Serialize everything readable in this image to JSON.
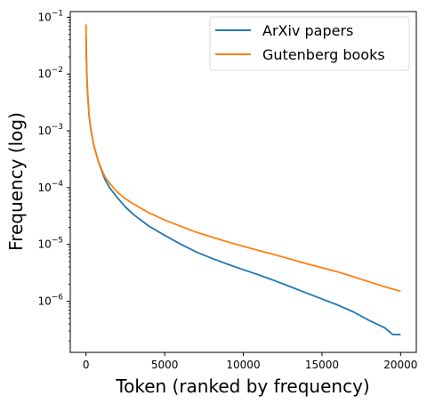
{
  "chart_data": {
    "type": "line",
    "xlabel": "Token (ranked by frequency)",
    "ylabel": "Frequency (log)",
    "xlim": [
      -1000,
      21000
    ],
    "ylim_log10": [
      -6.9,
      -0.9
    ],
    "x_ticks": [
      {
        "value": 0,
        "label": "0"
      },
      {
        "value": 5000,
        "label": "5000"
      },
      {
        "value": 10000,
        "label": "10000"
      },
      {
        "value": 15000,
        "label": "15000"
      },
      {
        "value": 20000,
        "label": "20000"
      }
    ],
    "y_ticks": [
      {
        "value": 0.1,
        "base": "10",
        "exp": "−1"
      },
      {
        "value": 0.01,
        "base": "10",
        "exp": "−2"
      },
      {
        "value": 0.001,
        "base": "10",
        "exp": "−3"
      },
      {
        "value": 0.0001,
        "base": "10",
        "exp": "−4"
      },
      {
        "value": 1e-05,
        "base": "10",
        "exp": "−5"
      },
      {
        "value": 1e-06,
        "base": "10",
        "exp": "−6"
      }
    ],
    "legend_position": "top-right",
    "series": [
      {
        "name": "ArXiv papers",
        "color": "#1f77b4",
        "points": [
          [
            1,
            0.045
          ],
          [
            20,
            0.02
          ],
          [
            60,
            0.008
          ],
          [
            100,
            0.0045
          ],
          [
            200,
            0.0018
          ],
          [
            300,
            0.0011
          ],
          [
            500,
            0.00055
          ],
          [
            800,
            0.00028
          ],
          [
            1200,
            0.00014
          ],
          [
            1500,
            0.0001
          ],
          [
            2000,
            6.6e-05
          ],
          [
            2500,
            4.6e-05
          ],
          [
            3000,
            3.4e-05
          ],
          [
            4000,
            2.1e-05
          ],
          [
            5000,
            1.45e-05
          ],
          [
            6000,
            1.02e-05
          ],
          [
            7000,
            7.4e-06
          ],
          [
            8000,
            5.7e-06
          ],
          [
            9000,
            4.5e-06
          ],
          [
            10000,
            3.6e-06
          ],
          [
            11000,
            2.9e-06
          ],
          [
            12000,
            2.3e-06
          ],
          [
            13000,
            1.8e-06
          ],
          [
            14000,
            1.4e-06
          ],
          [
            15000,
            1.1e-06
          ],
          [
            16000,
            8.6e-07
          ],
          [
            17000,
            6.5e-07
          ],
          [
            18000,
            4.6e-07
          ],
          [
            19000,
            3.4e-07
          ],
          [
            19500,
            2.6e-07
          ],
          [
            20000,
            2.6e-07
          ]
        ]
      },
      {
        "name": "Gutenberg books",
        "color": "#ff7f0e",
        "points": [
          [
            1,
            0.075
          ],
          [
            20,
            0.03
          ],
          [
            60,
            0.01
          ],
          [
            100,
            0.005
          ],
          [
            200,
            0.0018
          ],
          [
            300,
            0.0011
          ],
          [
            500,
            0.00055
          ],
          [
            800,
            0.00028
          ],
          [
            1200,
            0.000155
          ],
          [
            1500,
            0.00012
          ],
          [
            2000,
            8.3e-05
          ],
          [
            2500,
            6.4e-05
          ],
          [
            3000,
            5.2e-05
          ],
          [
            4000,
            3.6e-05
          ],
          [
            5000,
            2.7e-05
          ],
          [
            6000,
            2.1e-05
          ],
          [
            7000,
            1.65e-05
          ],
          [
            8000,
            1.35e-05
          ],
          [
            9000,
            1.11e-05
          ],
          [
            10000,
            9.3e-06
          ],
          [
            11000,
            7.8e-06
          ],
          [
            12000,
            6.6e-06
          ],
          [
            13000,
            5.5e-06
          ],
          [
            14000,
            4.6e-06
          ],
          [
            15000,
            3.9e-06
          ],
          [
            16000,
            3.3e-06
          ],
          [
            17000,
            2.7e-06
          ],
          [
            18000,
            2.2e-06
          ],
          [
            19000,
            1.8e-06
          ],
          [
            20000,
            1.5e-06
          ]
        ]
      }
    ]
  }
}
